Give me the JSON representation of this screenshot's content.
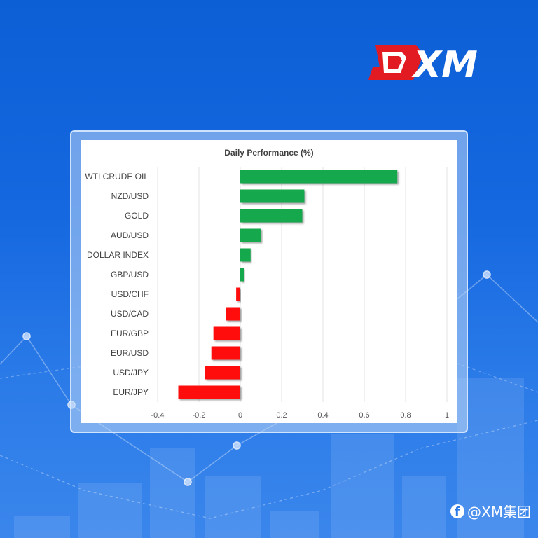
{
  "brand": {
    "logo_text": "XM",
    "watermark_text": "@XM集团",
    "watermark_icon": "social-icon"
  },
  "colors": {
    "positive": "#12a84e",
    "negative": "#ff1010",
    "logo_red": "#e21b23"
  },
  "chart_data": {
    "type": "bar",
    "orientation": "horizontal",
    "title": "Daily Performance (%)",
    "categories": [
      "WTI CRUDE OIL",
      "NZD/USD",
      "GOLD",
      "AUD/USD",
      "DOLLAR INDEX",
      "GBP/USD",
      "USD/CHF",
      "USD/CAD",
      "EUR/GBP",
      "EUR/USD",
      "USD/JPY",
      "EUR/JPY"
    ],
    "values": [
      0.76,
      0.31,
      0.3,
      0.1,
      0.05,
      0.02,
      -0.02,
      -0.07,
      -0.13,
      -0.14,
      -0.17,
      -0.3
    ],
    "xlim": [
      -0.4,
      1.0
    ],
    "xticks": [
      "-0.4",
      "-0.2",
      "0",
      "0.2",
      "0.4",
      "0.6",
      "0.8",
      "1"
    ],
    "xtick_values": [
      -0.4,
      -0.2,
      0,
      0.2,
      0.4,
      0.6,
      0.8,
      1.0
    ],
    "grid": true,
    "legend": "none"
  }
}
